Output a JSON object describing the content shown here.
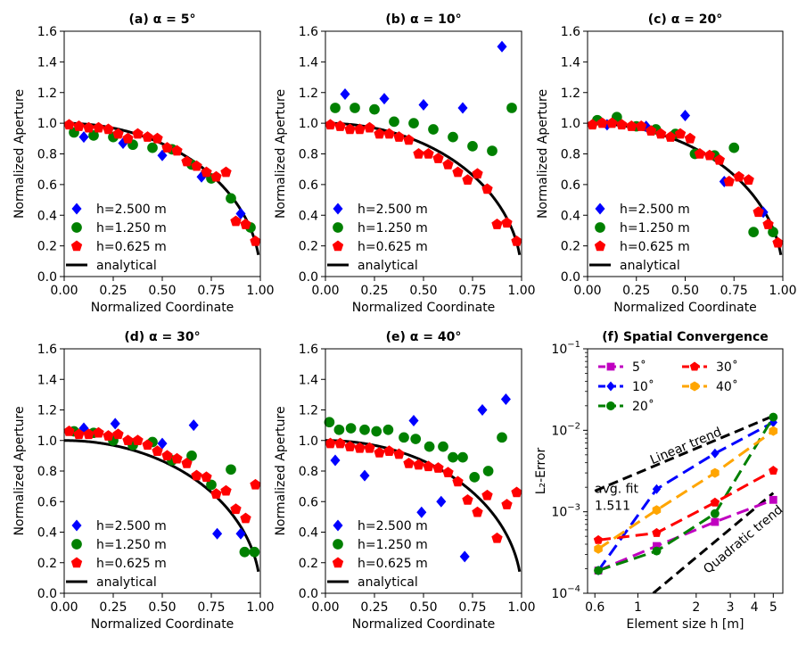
{
  "figure": {
    "width": 904,
    "height": 723
  },
  "chart_data": [
    {
      "type": "scatter",
      "title": "(a) α = 5°",
      "xlabel": "Normalized Coordinate",
      "ylabel": "Normalized Aperture",
      "xlim": [
        0.0,
        1.0
      ],
      "ylim": [
        0.0,
        1.6
      ],
      "xticks": [
        "0.00",
        "0.25",
        "0.50",
        "0.75",
        "1.00"
      ],
      "yticks": [
        "0.0",
        "0.2",
        "0.4",
        "0.6",
        "0.8",
        "1.0",
        "1.2",
        "1.4",
        "1.6"
      ],
      "legend_loc": "lower-left",
      "series": [
        {
          "name": "h=2.500 m",
          "marker": "diamond",
          "color": "#0000ff",
          "x": [
            0.1,
            0.3,
            0.5,
            0.7,
            0.9
          ],
          "y": [
            0.91,
            0.87,
            0.79,
            0.65,
            0.41
          ]
        },
        {
          "name": "h=1.250 m",
          "marker": "circle",
          "color": "#008000",
          "x": [
            0.05,
            0.15,
            0.25,
            0.35,
            0.45,
            0.55,
            0.65,
            0.75,
            0.85,
            0.95
          ],
          "y": [
            0.94,
            0.92,
            0.91,
            0.86,
            0.84,
            0.83,
            0.73,
            0.64,
            0.51,
            0.32
          ]
        },
        {
          "name": "h=0.625 m",
          "marker": "pentagon",
          "color": "#ff0000",
          "x": [
            0.025,
            0.075,
            0.125,
            0.175,
            0.225,
            0.275,
            0.325,
            0.375,
            0.425,
            0.475,
            0.525,
            0.575,
            0.625,
            0.675,
            0.725,
            0.775,
            0.825,
            0.875,
            0.925,
            0.975
          ],
          "y": [
            0.99,
            0.98,
            0.97,
            0.97,
            0.96,
            0.93,
            0.9,
            0.93,
            0.91,
            0.9,
            0.84,
            0.82,
            0.75,
            0.72,
            0.68,
            0.65,
            0.68,
            0.36,
            0.34,
            0.23
          ]
        },
        {
          "name": "analytical",
          "kind": "line",
          "color": "#000000",
          "fn": "sqrt(1-x^2)"
        }
      ]
    },
    {
      "type": "scatter",
      "title": "(b) α = 10°",
      "xlabel": "Normalized Coordinate",
      "ylabel": "Normalized Aperture",
      "xlim": [
        0.0,
        1.0
      ],
      "ylim": [
        0.0,
        1.6
      ],
      "xticks": [
        "0.00",
        "0.25",
        "0.50",
        "0.75",
        "1.00"
      ],
      "yticks": [
        "0.0",
        "0.2",
        "0.4",
        "0.6",
        "0.8",
        "1.0",
        "1.2",
        "1.4",
        "1.6"
      ],
      "legend_loc": "lower-left",
      "series": [
        {
          "name": "h=2.500 m",
          "marker": "diamond",
          "color": "#0000ff",
          "x": [
            0.1,
            0.3,
            0.5,
            0.7,
            0.9
          ],
          "y": [
            1.19,
            1.16,
            1.12,
            1.1,
            1.5
          ]
        },
        {
          "name": "h=1.250 m",
          "marker": "circle",
          "color": "#008000",
          "x": [
            0.05,
            0.15,
            0.25,
            0.35,
            0.45,
            0.55,
            0.65,
            0.75,
            0.85,
            0.95
          ],
          "y": [
            1.1,
            1.1,
            1.09,
            1.01,
            1.0,
            0.96,
            0.91,
            0.85,
            0.82,
            1.1
          ]
        },
        {
          "name": "h=0.625 m",
          "marker": "pentagon",
          "color": "#ff0000",
          "x": [
            0.025,
            0.075,
            0.125,
            0.175,
            0.225,
            0.275,
            0.325,
            0.375,
            0.425,
            0.475,
            0.525,
            0.575,
            0.625,
            0.675,
            0.725,
            0.775,
            0.825,
            0.875,
            0.925,
            0.975
          ],
          "y": [
            0.99,
            0.98,
            0.96,
            0.96,
            0.97,
            0.93,
            0.93,
            0.91,
            0.89,
            0.8,
            0.8,
            0.77,
            0.73,
            0.68,
            0.63,
            0.67,
            0.57,
            0.34,
            0.35,
            0.23
          ]
        },
        {
          "name": "analytical",
          "kind": "line",
          "color": "#000000",
          "fn": "sqrt(1-x^2)"
        }
      ]
    },
    {
      "type": "scatter",
      "title": "(c) α = 20°",
      "xlabel": "Normalized Coordinate",
      "ylabel": "Normalized Aperture",
      "xlim": [
        0.0,
        1.0
      ],
      "ylim": [
        0.0,
        1.6
      ],
      "xticks": [
        "0.00",
        "0.25",
        "0.50",
        "0.75",
        "1.00"
      ],
      "yticks": [
        "0.0",
        "0.2",
        "0.4",
        "0.6",
        "0.8",
        "1.0",
        "1.2",
        "1.4",
        "1.6"
      ],
      "legend_loc": "lower-left",
      "series": [
        {
          "name": "h=2.500 m",
          "marker": "diamond",
          "color": "#0000ff",
          "x": [
            0.1,
            0.3,
            0.5,
            0.7,
            0.9
          ],
          "y": [
            0.99,
            0.98,
            1.05,
            0.62,
            0.42
          ]
        },
        {
          "name": "h=1.250 m",
          "marker": "circle",
          "color": "#008000",
          "x": [
            0.05,
            0.15,
            0.25,
            0.35,
            0.45,
            0.55,
            0.65,
            0.75,
            0.85,
            0.95
          ],
          "y": [
            1.02,
            1.04,
            0.98,
            0.96,
            0.93,
            0.8,
            0.79,
            0.84,
            0.29,
            0.29
          ]
        },
        {
          "name": "h=0.625 m",
          "marker": "pentagon",
          "color": "#ff0000",
          "x": [
            0.025,
            0.075,
            0.125,
            0.175,
            0.225,
            0.275,
            0.325,
            0.375,
            0.425,
            0.475,
            0.525,
            0.575,
            0.625,
            0.675,
            0.725,
            0.775,
            0.825,
            0.875,
            0.925,
            0.975
          ],
          "y": [
            0.99,
            1.0,
            1.0,
            0.99,
            0.98,
            0.98,
            0.95,
            0.93,
            0.91,
            0.93,
            0.9,
            0.8,
            0.79,
            0.76,
            0.62,
            0.65,
            0.63,
            0.42,
            0.34,
            0.22
          ]
        },
        {
          "name": "analytical",
          "kind": "line",
          "color": "#000000",
          "fn": "sqrt(1-x^2)"
        }
      ]
    },
    {
      "type": "scatter",
      "title": "(d) α = 30°",
      "xlabel": "Normalized Coordinate",
      "ylabel": "Normalized Aperture",
      "xlim": [
        0.0,
        1.0
      ],
      "ylim": [
        0.0,
        1.6
      ],
      "xticks": [
        "0.00",
        "0.25",
        "0.50",
        "0.75",
        "1.00"
      ],
      "yticks": [
        "0.0",
        "0.2",
        "0.4",
        "0.6",
        "0.8",
        "1.0",
        "1.2",
        "1.4",
        "1.6"
      ],
      "legend_loc": "lower-left",
      "series": [
        {
          "name": "h=2.500 m",
          "marker": "diamond",
          "color": "#0000ff",
          "x": [
            0.1,
            0.26,
            0.5,
            0.66,
            0.78,
            0.9
          ],
          "y": [
            1.08,
            1.11,
            0.98,
            1.1,
            0.39,
            0.39
          ]
        },
        {
          "name": "h=1.250 m",
          "marker": "circle",
          "color": "#008000",
          "x": [
            0.05,
            0.15,
            0.25,
            0.35,
            0.45,
            0.55,
            0.65,
            0.75,
            0.85,
            0.92,
            0.97
          ],
          "y": [
            1.06,
            1.05,
            1.0,
            0.97,
            0.99,
            0.87,
            0.9,
            0.71,
            0.81,
            0.27,
            0.27
          ]
        },
        {
          "name": "h=0.625 m",
          "marker": "pentagon",
          "color": "#ff0000",
          "x": [
            0.025,
            0.075,
            0.125,
            0.175,
            0.225,
            0.275,
            0.325,
            0.375,
            0.425,
            0.475,
            0.525,
            0.575,
            0.625,
            0.675,
            0.725,
            0.775,
            0.825,
            0.875,
            0.925,
            0.975
          ],
          "y": [
            1.06,
            1.04,
            1.04,
            1.05,
            1.03,
            1.04,
            1.0,
            1.0,
            0.97,
            0.93,
            0.9,
            0.88,
            0.85,
            0.77,
            0.76,
            0.65,
            0.67,
            0.55,
            0.49,
            0.71
          ]
        },
        {
          "name": "analytical",
          "kind": "line",
          "color": "#000000",
          "fn": "sqrt(1-x^2)"
        }
      ]
    },
    {
      "type": "scatter",
      "title": "(e) α = 40°",
      "xlabel": "Normalized Coordinate",
      "ylabel": "Normalized Aperture",
      "xlim": [
        0.0,
        1.0
      ],
      "ylim": [
        0.0,
        1.6
      ],
      "xticks": [
        "0.00",
        "0.25",
        "0.50",
        "0.75",
        "1.00"
      ],
      "yticks": [
        "0.0",
        "0.2",
        "0.4",
        "0.6",
        "0.8",
        "1.0",
        "1.2",
        "1.4",
        "1.6"
      ],
      "legend_loc": "lower-left",
      "series": [
        {
          "name": "h=2.500 m",
          "marker": "diamond",
          "color": "#0000ff",
          "x": [
            0.05,
            0.2,
            0.45,
            0.49,
            0.59,
            0.71,
            0.8,
            0.92
          ],
          "y": [
            0.87,
            0.77,
            1.13,
            0.53,
            0.6,
            0.24,
            1.2,
            1.27
          ]
        },
        {
          "name": "h=1.250 m",
          "marker": "circle",
          "color": "#008000",
          "x": [
            0.02,
            0.07,
            0.13,
            0.2,
            0.26,
            0.32,
            0.4,
            0.46,
            0.53,
            0.6,
            0.65,
            0.7,
            0.76,
            0.83,
            0.9
          ],
          "y": [
            1.12,
            1.07,
            1.08,
            1.07,
            1.06,
            1.07,
            1.02,
            1.01,
            0.96,
            0.96,
            0.89,
            0.89,
            0.76,
            0.8,
            1.02
          ]
        },
        {
          "name": "h=0.625 m",
          "marker": "pentagon",
          "color": "#ff0000",
          "x": [
            0.025,
            0.075,
            0.125,
            0.175,
            0.225,
            0.275,
            0.325,
            0.375,
            0.425,
            0.475,
            0.525,
            0.575,
            0.625,
            0.675,
            0.725,
            0.775,
            0.825,
            0.875,
            0.925,
            0.975
          ],
          "y": [
            0.98,
            0.98,
            0.96,
            0.95,
            0.95,
            0.92,
            0.93,
            0.91,
            0.85,
            0.84,
            0.83,
            0.82,
            0.79,
            0.73,
            0.61,
            0.53,
            0.64,
            0.36,
            0.58,
            0.66
          ]
        },
        {
          "name": "analytical",
          "kind": "line",
          "color": "#000000",
          "fn": "sqrt(1-x^2)"
        }
      ]
    },
    {
      "type": "line",
      "scale": "loglog",
      "title": "(f) Spatial Convergence",
      "xlabel": "Element size h [m]",
      "ylabel": "L₂-Error",
      "xlim": [
        0.55,
        5.6
      ],
      "ylim": [
        0.0001,
        0.1
      ],
      "xticks": [
        {
          "v": 0.6,
          "label": "0.6"
        },
        {
          "v": 1,
          "label": "1"
        },
        {
          "v": 2,
          "label": "2"
        },
        {
          "v": 3,
          "label": "3"
        },
        {
          "v": 4,
          "label": "4"
        },
        {
          "v": 5,
          "label": "5"
        }
      ],
      "yticks": [
        {
          "v": 0.0001,
          "base": "10",
          "exp": "−4"
        },
        {
          "v": 0.001,
          "base": "10",
          "exp": "−3"
        },
        {
          "v": 0.01,
          "base": "10",
          "exp": "−2"
        },
        {
          "v": 0.1,
          "base": "10",
          "exp": "−1"
        }
      ],
      "x": [
        0.625,
        1.25,
        2.5,
        5.0
      ],
      "series": [
        {
          "name": "5˚",
          "color": "#c000c0",
          "marker": "square",
          "values": [
            0.00019,
            0.00038,
            0.00075,
            0.0014
          ]
        },
        {
          "name": "10˚",
          "color": "#0000ff",
          "marker": "diamond",
          "values": [
            0.00019,
            0.0019,
            0.0052,
            0.0125
          ]
        },
        {
          "name": "20˚",
          "color": "#008000",
          "marker": "circle",
          "values": [
            0.00019,
            0.00033,
            0.00095,
            0.0145
          ]
        },
        {
          "name": "30˚",
          "color": "#ff0000",
          "marker": "pentagon",
          "values": [
            0.00045,
            0.00055,
            0.0013,
            0.0032
          ]
        },
        {
          "name": "40˚",
          "color": "#ffa500",
          "marker": "hexagon",
          "values": [
            0.00035,
            0.00105,
            0.003,
            0.0098
          ]
        }
      ],
      "trends": [
        {
          "name": "Linear trend",
          "label": "Linear trend",
          "x": [
            0.6,
            5.0
          ],
          "y": [
            0.0018,
            0.015
          ]
        },
        {
          "name": "Quadratic trend",
          "label": "Quadratic trend",
          "x": [
            1.2,
            5.0
          ],
          "y": [
            0.0001,
            0.0017
          ]
        }
      ],
      "annotation": {
        "line1": "avg. fit",
        "line2": "1.511"
      }
    }
  ]
}
